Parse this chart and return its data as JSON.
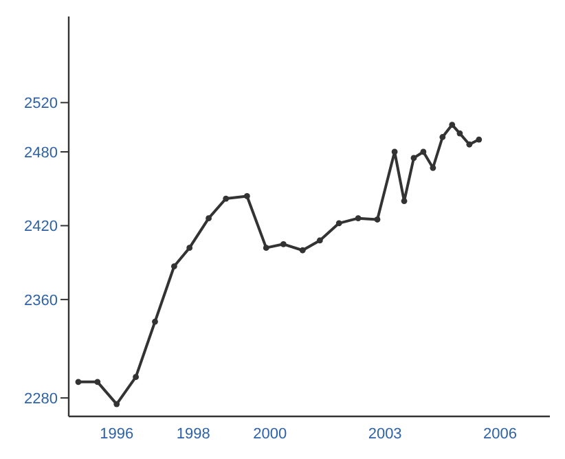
{
  "chart_data": {
    "type": "line",
    "x": [
      1995.0,
      1995.5,
      1996.0,
      1996.5,
      1997.0,
      1997.5,
      1997.9,
      1998.4,
      1998.85,
      1999.4,
      1999.9,
      2000.35,
      2000.85,
      2001.3,
      2001.8,
      2002.3,
      2002.8,
      2003.25,
      2003.5,
      2003.75,
      2004.0,
      2004.25,
      2004.5,
      2004.75,
      2004.95,
      2005.2,
      2005.45
    ],
    "series": [
      {
        "color": "#333333",
        "values": [
          2293,
          2293,
          2275,
          2297,
          2342,
          2387,
          2402,
          2426,
          2442,
          2444,
          2402,
          2405,
          2400,
          2408,
          2422,
          2426,
          2425,
          2480,
          2440,
          2475,
          2480,
          2467,
          2492,
          2502,
          2495,
          2486,
          2490
        ]
      }
    ],
    "xlim": [
      1994.75,
      2007.3
    ],
    "xticks": [
      1996,
      1998,
      2000,
      2003,
      2006
    ],
    "ylim": [
      2265,
      2590
    ],
    "yticks": [
      2280,
      2360,
      2420,
      2480,
      2520
    ],
    "grid": false,
    "marker": "circle",
    "line_style": "solid"
  }
}
